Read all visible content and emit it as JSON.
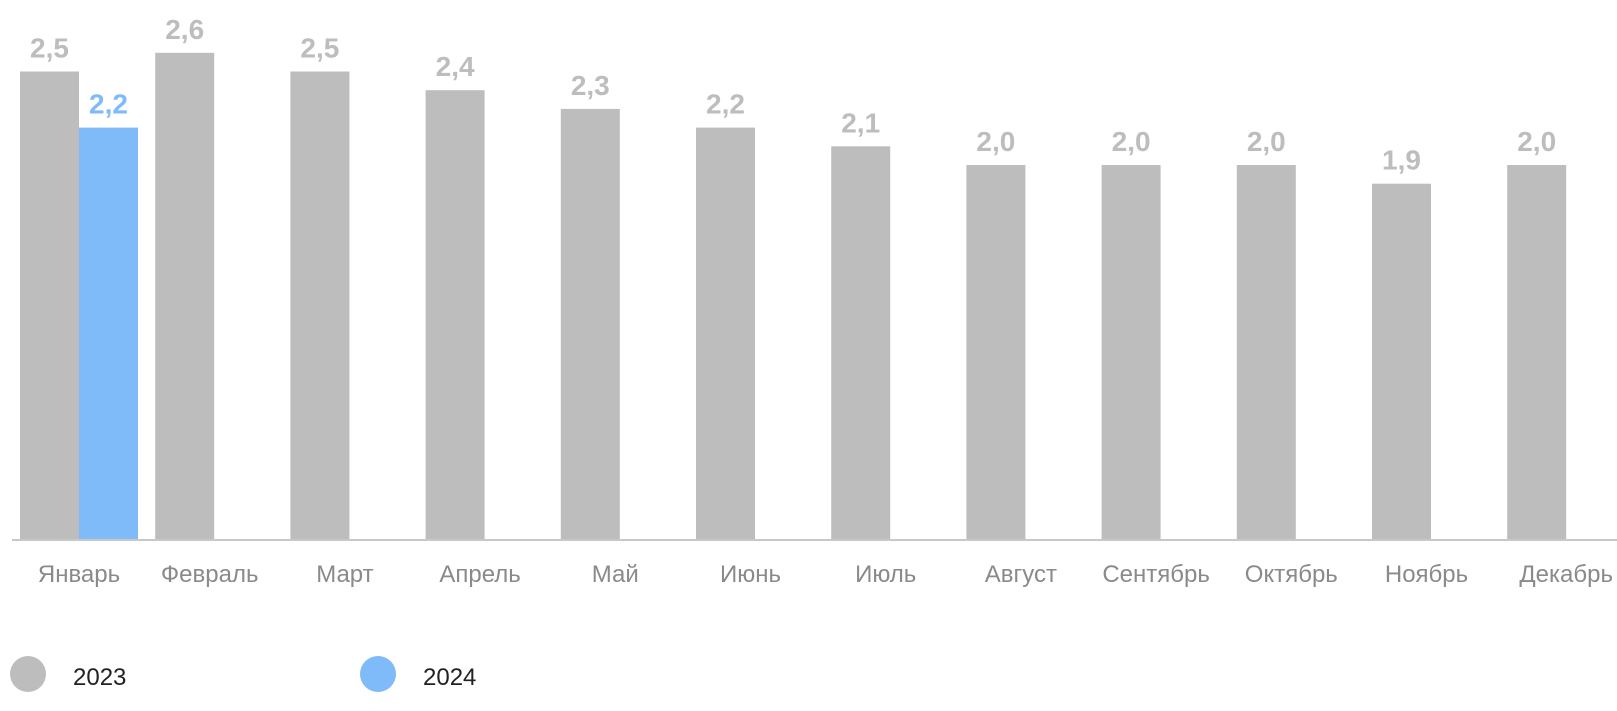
{
  "chart_data": {
    "type": "bar",
    "categories": [
      "Январь",
      "Февраль",
      "Март",
      "Апрель",
      "Май",
      "Июнь",
      "Июль",
      "Август",
      "Сентябрь",
      "Октябрь",
      "Ноябрь",
      "Декабрь"
    ],
    "series": [
      {
        "name": "2023",
        "color": "#bdbdbd",
        "values": [
          2.5,
          2.6,
          2.5,
          2.4,
          2.3,
          2.2,
          2.1,
          2.0,
          2.0,
          2.0,
          1.9,
          2.0
        ],
        "labels": [
          "2,5",
          "2,6",
          "2,5",
          "2,4",
          "2,3",
          "2,2",
          "2,1",
          "2,0",
          "2,0",
          "2,0",
          "1,9",
          "2,0"
        ]
      },
      {
        "name": "2024",
        "color": "#7fbaf9",
        "values": [
          2.2,
          null,
          null,
          null,
          null,
          null,
          null,
          null,
          null,
          null,
          null,
          null
        ],
        "labels": [
          "2,2",
          "",
          "",
          "",
          "",
          "",
          "",
          "",
          "",
          "",
          "",
          ""
        ]
      }
    ],
    "legend_position": "bottom-left",
    "grid": false,
    "axis_color": "#c8c8c8",
    "label_color_2023": "#bdbdbd",
    "label_color_2024": "#7fbaf9"
  }
}
